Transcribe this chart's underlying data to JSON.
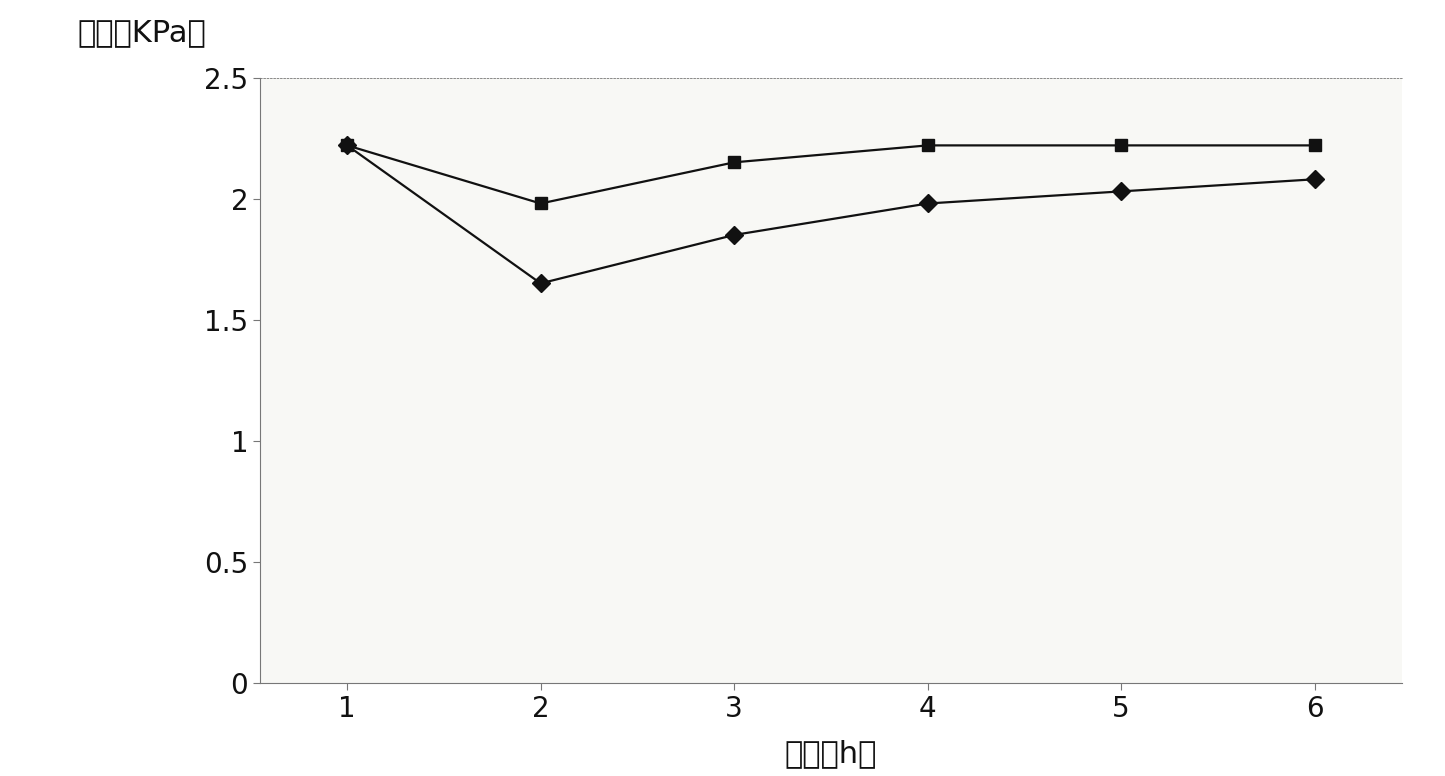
{
  "x": [
    1,
    2,
    3,
    4,
    5,
    6
  ],
  "series_square": [
    2.22,
    1.98,
    2.15,
    2.22,
    2.22,
    2.22
  ],
  "series_diamond": [
    2.22,
    1.65,
    1.85,
    1.98,
    2.03,
    2.08
  ],
  "xlabel": "小时（h）",
  "ylabel": "眼压（KPa）",
  "ylim": [
    0,
    2.5
  ],
  "yticks": [
    0,
    0.5,
    1,
    1.5,
    2,
    2.5
  ],
  "ytick_labels": [
    "0",
    "0.5",
    "1",
    "1.5",
    "2",
    "2.5"
  ],
  "xticks": [
    1,
    2,
    3,
    4,
    5,
    6
  ],
  "bg_color": "#f8f8f5",
  "line_color": "#111111",
  "marker_size": 9,
  "line_width": 1.6,
  "spine_color": "#777777",
  "tick_fontsize": 20,
  "label_fontsize": 22
}
